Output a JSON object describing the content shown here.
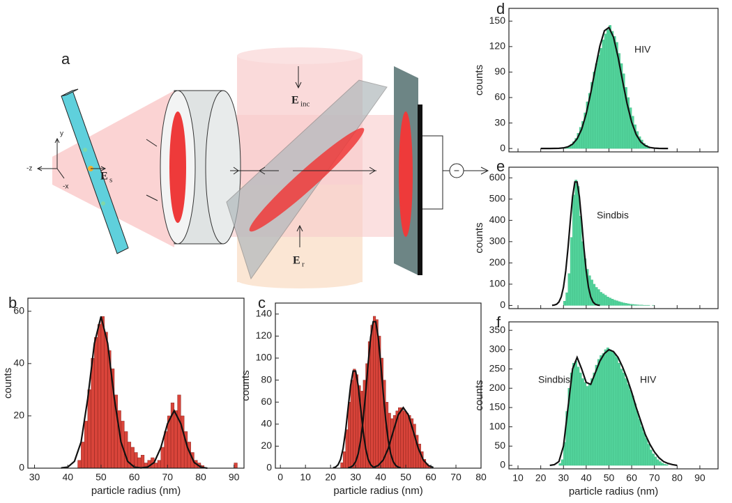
{
  "diagram": {
    "panel": "a",
    "fields": [
      {
        "symbol": "E",
        "subscript": "inc"
      },
      {
        "symbol": "E",
        "subscript": "r"
      },
      {
        "symbol": "E",
        "subscript": "s"
      }
    ],
    "axes": [
      "-z",
      "y",
      "-x"
    ],
    "detector_sign": "−"
  },
  "chart_data": [
    {
      "type": "histogram",
      "panel": "b",
      "color": "#d9443a",
      "xlabel": "particle radius (nm)",
      "ylabel": "counts",
      "xlim": [
        28,
        93
      ],
      "ylim": [
        0,
        65
      ],
      "xticks": [
        30,
        40,
        50,
        60,
        70,
        80,
        90
      ],
      "yticks": [
        0,
        20,
        40,
        60
      ],
      "xtick_labels": true,
      "bins": [
        43,
        44,
        45,
        46,
        47,
        48,
        49,
        50,
        51,
        52,
        53,
        54,
        55,
        56,
        57,
        58,
        59,
        60,
        61,
        62,
        63,
        64,
        65,
        66,
        67,
        68,
        69,
        70,
        71,
        72,
        73,
        74,
        75,
        76,
        77,
        78,
        79,
        80,
        81,
        82,
        83,
        84,
        85,
        86,
        87,
        88,
        89,
        90,
        91,
        92
      ],
      "values": [
        3,
        10,
        18,
        30,
        42,
        50,
        55,
        58,
        52,
        45,
        38,
        28,
        22,
        18,
        14,
        10,
        8,
        6,
        4,
        5,
        2,
        3,
        4,
        2,
        3,
        8,
        14,
        20,
        25,
        22,
        28,
        20,
        14,
        10,
        6,
        3,
        2,
        1,
        0,
        0,
        0,
        0,
        0,
        0,
        0,
        0,
        0,
        2,
        0
      ],
      "curves": [
        {
          "x": [
            38,
            40,
            42,
            44,
            46,
            48,
            50,
            52,
            54,
            56,
            58,
            60,
            62,
            64,
            66,
            68,
            70,
            72,
            74,
            76,
            78,
            80,
            82
          ],
          "values": [
            0.1,
            0.4,
            2.6,
            10,
            26.6,
            47.7,
            58,
            47.7,
            26.6,
            10,
            2.6,
            0.4,
            0.1,
            0.4,
            2.2,
            7.9,
            17,
            22,
            17,
            7.9,
            2.2,
            0.4,
            0
          ]
        }
      ],
      "annotations": []
    },
    {
      "type": "histogram",
      "panel": "c",
      "color": "#d9443a",
      "xlabel": "particle radius (nm)",
      "ylabel": "counts",
      "xlim": [
        -2,
        80
      ],
      "ylim": [
        0,
        150
      ],
      "xticks": [
        0,
        10,
        20,
        30,
        40,
        50,
        60,
        70,
        80
      ],
      "yticks": [
        0,
        20,
        40,
        60,
        80,
        100,
        120,
        140
      ],
      "xtick_labels": true,
      "bins": [
        24,
        25,
        26,
        27,
        28,
        29,
        30,
        31,
        32,
        33,
        34,
        35,
        36,
        37,
        38,
        39,
        40,
        41,
        42,
        43,
        44,
        45,
        46,
        47,
        48,
        49,
        50,
        51,
        52,
        53,
        54,
        55,
        56,
        57,
        58,
        59,
        60
      ],
      "values": [
        5,
        15,
        35,
        60,
        80,
        90,
        85,
        75,
        70,
        80,
        95,
        115,
        130,
        138,
        135,
        120,
        100,
        80,
        60,
        50,
        45,
        48,
        52,
        55,
        55,
        52,
        50,
        48,
        45,
        40,
        30,
        22,
        15,
        8,
        4,
        2
      ],
      "curves": [
        {
          "x": [
            21,
            22,
            23,
            24,
            25,
            26,
            27,
            28,
            29,
            30,
            31,
            32,
            33,
            34,
            35,
            36,
            37,
            38
          ],
          "values": [
            0.3,
            1,
            3.1,
            8,
            17.8,
            33.8,
            54.6,
            75.2,
            88.2,
            88.2,
            75.2,
            54.6,
            33.8,
            17.8,
            8,
            3.1,
            1,
            0.3
          ]
        },
        {
          "x": [
            27,
            28,
            29,
            30,
            31,
            32,
            33,
            34,
            35,
            36,
            37,
            38,
            39,
            40,
            41,
            42,
            43,
            44,
            45,
            46,
            47,
            48
          ],
          "values": [
            0.3,
            0.9,
            2.4,
            5.9,
            12.9,
            25.1,
            43.8,
            68.4,
            95.4,
            119.1,
            133.1,
            133.1,
            119.1,
            95.4,
            68.4,
            43.8,
            25.1,
            12.9,
            5.9,
            2.4,
            0.9,
            0.3
          ]
        },
        {
          "x": [
            37,
            39,
            41,
            43,
            45,
            47,
            49,
            51,
            53,
            55,
            57,
            59,
            61
          ],
          "values": [
            0.6,
            2.4,
            7.4,
            17.9,
            33.4,
            48.5,
            55,
            48.5,
            33.4,
            17.9,
            7.4,
            2.4,
            0.6
          ]
        }
      ],
      "annotations": []
    },
    {
      "type": "histogram",
      "panel": "d",
      "color": "#52d39b",
      "ylabel": "counts",
      "xlim": [
        6,
        98
      ],
      "ylim": [
        -4,
        165
      ],
      "xticks": [
        10,
        20,
        30,
        40,
        50,
        60,
        70,
        80,
        90
      ],
      "yticks": [
        0,
        30,
        60,
        90,
        120,
        150
      ],
      "xtick_labels": false,
      "bins": [
        30,
        31,
        32,
        33,
        34,
        35,
        36,
        37,
        38,
        39,
        40,
        41,
        42,
        43,
        44,
        45,
        46,
        47,
        48,
        49,
        50,
        51,
        52,
        53,
        54,
        55,
        56,
        57,
        58,
        59,
        60,
        61,
        62,
        63,
        64,
        65,
        66,
        67,
        68
      ],
      "values": [
        1,
        2,
        3,
        5,
        8,
        12,
        18,
        25,
        32,
        42,
        55,
        65,
        78,
        90,
        100,
        110,
        118,
        128,
        135,
        140,
        145,
        138,
        132,
        125,
        112,
        100,
        88,
        72,
        60,
        48,
        38,
        28,
        20,
        14,
        10,
        6,
        4,
        2
      ],
      "curves": [
        {
          "x": [
            20,
            22,
            24,
            26,
            28,
            30,
            32,
            34,
            36,
            38,
            40,
            42,
            44,
            46,
            48,
            50,
            52,
            54,
            56,
            58,
            60,
            62,
            64,
            66,
            68,
            70,
            72,
            74,
            76
          ],
          "values": [
            0,
            0,
            0,
            0.1,
            0.2,
            0.7,
            2,
            5.1,
            11.4,
            22.7,
            40.9,
            65.4,
            93.9,
            120.6,
            138.6,
            142.5,
            131.1,
            107.9,
            79.5,
            52.6,
            30.9,
            16.3,
            7.7,
            3.3,
            1.2,
            0.4,
            0.1,
            0,
            0
          ]
        }
      ],
      "annotations": [
        "HIV"
      ]
    },
    {
      "type": "histogram",
      "panel": "e",
      "color": "#52d39b",
      "ylabel": "counts",
      "xlim": [
        6,
        98
      ],
      "ylim": [
        -15,
        650
      ],
      "xticks": [
        10,
        20,
        30,
        40,
        50,
        60,
        70,
        80,
        90
      ],
      "yticks": [
        0,
        100,
        200,
        300,
        400,
        500,
        600
      ],
      "xtick_labels": false,
      "bins": [
        30,
        31,
        32,
        33,
        34,
        35,
        36,
        37,
        38,
        39,
        40,
        41,
        42,
        43,
        44,
        45,
        46,
        47,
        48,
        49,
        50,
        51,
        52,
        53,
        54,
        55,
        56,
        57,
        58,
        59,
        60,
        61,
        62,
        63,
        64,
        65,
        66,
        67,
        68,
        69,
        70
      ],
      "values": [
        20,
        60,
        150,
        320,
        520,
        590,
        560,
        420,
        300,
        220,
        170,
        140,
        120,
        100,
        85,
        75,
        62,
        55,
        48,
        40,
        35,
        30,
        25,
        22,
        18,
        15,
        12,
        10,
        8,
        6,
        5,
        4,
        3,
        2,
        2,
        1,
        1,
        1,
        0,
        1
      ],
      "curves": [
        {
          "x": [
            25,
            26,
            27,
            28,
            29,
            30,
            31,
            32,
            33,
            34,
            35,
            36,
            37,
            38,
            39,
            40,
            41,
            42,
            43,
            44,
            45,
            46
          ],
          "values": [
            0.5,
            1.9,
            5.9,
            16.3,
            40,
            85.7,
            162.4,
            270.3,
            395.9,
            511,
            580.6,
            580.6,
            511,
            395.9,
            270.3,
            162.4,
            85.7,
            40,
            16.3,
            5.9,
            1.9,
            0.5
          ]
        }
      ],
      "annotations": [
        "Sindbis"
      ]
    },
    {
      "type": "histogram",
      "panel": "f",
      "color": "#52d39b",
      "xlabel": "particle radius (nm)",
      "ylabel": "counts",
      "xlim": [
        6,
        98
      ],
      "ylim": [
        -9,
        372
      ],
      "xticks": [
        10,
        20,
        30,
        40,
        50,
        60,
        70,
        80,
        90
      ],
      "yticks": [
        0,
        50,
        100,
        150,
        200,
        250,
        300,
        350
      ],
      "xtick_labels": true,
      "bins": [
        28,
        29,
        30,
        31,
        32,
        33,
        34,
        35,
        36,
        37,
        38,
        39,
        40,
        41,
        42,
        43,
        44,
        45,
        46,
        47,
        48,
        49,
        50,
        51,
        52,
        53,
        54,
        55,
        56,
        57,
        58,
        59,
        60,
        61,
        62,
        63,
        64,
        65,
        66,
        67,
        68,
        69,
        70,
        71,
        72,
        73,
        74,
        75,
        76
      ],
      "values": [
        5,
        15,
        60,
        140,
        200,
        240,
        265,
        270,
        255,
        240,
        225,
        215,
        205,
        210,
        225,
        240,
        260,
        275,
        285,
        290,
        300,
        305,
        300,
        295,
        290,
        280,
        265,
        250,
        240,
        225,
        210,
        195,
        180,
        160,
        140,
        120,
        100,
        85,
        70,
        55,
        40,
        30,
        22,
        15,
        10,
        6,
        3,
        2
      ],
      "curves": [
        {
          "x": [
            24,
            26,
            28,
            30,
            32,
            34,
            36,
            38,
            40,
            42,
            44,
            46,
            48,
            50,
            52,
            54,
            56,
            58,
            60,
            62,
            64,
            66,
            68,
            70,
            72,
            74,
            76,
            78,
            80
          ],
          "values": [
            0,
            2,
            10,
            50,
            150,
            250,
            280,
            250,
            215,
            210,
            240,
            270,
            290,
            300,
            295,
            280,
            255,
            225,
            190,
            150,
            115,
            80,
            55,
            35,
            20,
            10,
            5,
            2,
            0
          ]
        }
      ],
      "annotations": [
        "Sindbis",
        "HIV"
      ]
    }
  ]
}
